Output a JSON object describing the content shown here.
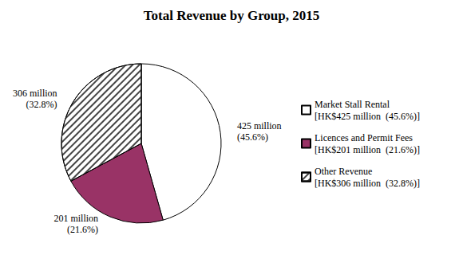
{
  "chart_data": {
    "type": "pie",
    "title": "Total Revenue by Group, 2015",
    "categories": [
      "Market Stall Rental",
      "Licences and Permit Fees",
      "Other Revenue"
    ],
    "values": [
      425,
      201,
      306
    ],
    "value_labels": [
      "425 million\n(45.6%)",
      "201 million\n(21.6%)",
      "306 million\n(32.8%)"
    ],
    "legend_labels": [
      "[HK$425 million  (45.6%)]",
      "[HK$201 million  (21.6%)]",
      "[HK$306 million  (32.8%)]"
    ],
    "colors": [
      "#ffffff",
      "#993366",
      "#ffffff"
    ],
    "data_labels": true,
    "legend": "right"
  }
}
